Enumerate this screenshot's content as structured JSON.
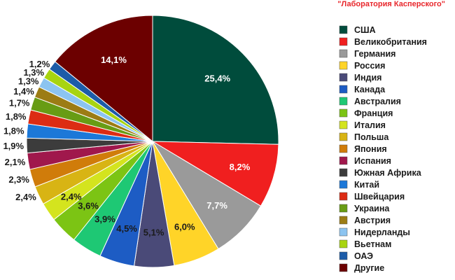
{
  "source_label": "\"Лаборатория Касперского\"",
  "chart_data": {
    "type": "pie",
    "legend_position": "right",
    "slices": [
      {
        "name": "США",
        "value": 25.4,
        "label": "25,4%",
        "color": "#004c3c"
      },
      {
        "name": "Великобритания",
        "value": 8.2,
        "label": "8,2%",
        "color": "#f01f1f"
      },
      {
        "name": "Германия",
        "value": 7.7,
        "label": "7,7%",
        "color": "#9a9a9a"
      },
      {
        "name": "Россия",
        "value": 6.0,
        "label": "6,0%",
        "color": "#ffd428"
      },
      {
        "name": "Индия",
        "value": 5.1,
        "label": "5,1%",
        "color": "#4a4a78"
      },
      {
        "name": "Канада",
        "value": 4.5,
        "label": "4,5%",
        "color": "#1d5cc4"
      },
      {
        "name": "Австралия",
        "value": 3.9,
        "label": "3,9%",
        "color": "#1ec874"
      },
      {
        "name": "Франция",
        "value": 3.6,
        "label": "3,6%",
        "color": "#7cc414"
      },
      {
        "name": "Италия",
        "value": 2.4,
        "label": "2,4%",
        "color": "#d4e41e"
      },
      {
        "name": "Польша",
        "value": 2.4,
        "label": "2,4%",
        "color": "#d8b414"
      },
      {
        "name": "Япония",
        "value": 2.3,
        "label": "2,3%",
        "color": "#d07c0a"
      },
      {
        "name": "Испания",
        "value": 2.1,
        "label": "2,1%",
        "color": "#a0184c"
      },
      {
        "name": "Южная Африка",
        "value": 1.9,
        "label": "1,9%",
        "color": "#3c3c3c"
      },
      {
        "name": "Китай",
        "value": 1.8,
        "label": "1,8%",
        "color": "#1c78d8"
      },
      {
        "name": "Швейцария",
        "value": 1.8,
        "label": "1,8%",
        "color": "#dc2c14"
      },
      {
        "name": "Украина",
        "value": 1.7,
        "label": "1,7%",
        "color": "#689c14"
      },
      {
        "name": "Австрия",
        "value": 1.4,
        "label": "1,4%",
        "color": "#9c7c14"
      },
      {
        "name": "Нидерланды",
        "value": 1.3,
        "label": "1,3%",
        "color": "#8cc4f0"
      },
      {
        "name": "Вьетнам",
        "value": 1.3,
        "label": "1,3%",
        "color": "#a8d410"
      },
      {
        "name": "ОАЭ",
        "value": 1.2,
        "label": "1,2%",
        "color": "#1c5ca8"
      },
      {
        "name": "Другие",
        "value": 14.1,
        "label": "14,1%",
        "color": "#6c0000"
      }
    ]
  }
}
